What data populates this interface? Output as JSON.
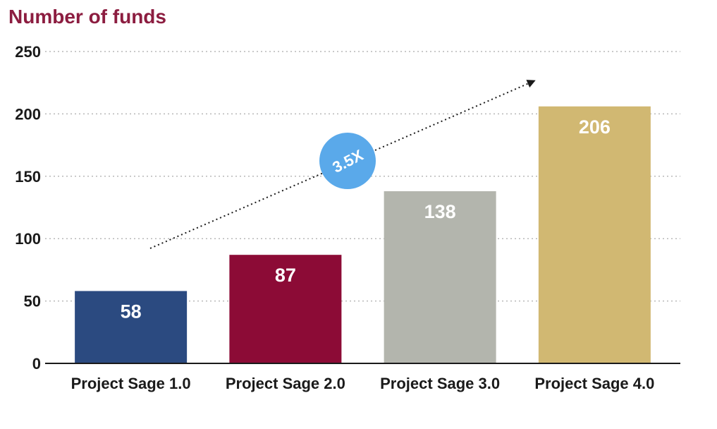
{
  "chart_data": {
    "type": "bar",
    "title": "Number of funds",
    "xlabel": "",
    "ylabel": "",
    "ylim": [
      0,
      250
    ],
    "yticks": [
      0,
      50,
      100,
      150,
      200,
      250
    ],
    "grid": true,
    "categories": [
      "Project Sage 1.0",
      "Project Sage 2.0",
      "Project Sage 3.0",
      "Project Sage 4.0"
    ],
    "values": [
      58,
      87,
      138,
      206
    ],
    "value_labels": [
      "58",
      "87",
      "138",
      "206"
    ],
    "bar_colors": [
      "#2b4a80",
      "#8c0b36",
      "#b3b5ad",
      "#d1b872"
    ],
    "annotation": {
      "text": "3.5X",
      "color": "#5aa9ea"
    }
  },
  "colors": {
    "title": "#8c1d40",
    "grid": "#b8b8b8",
    "axis": "#1a1a1a",
    "arrow": "#1a1a1a"
  }
}
